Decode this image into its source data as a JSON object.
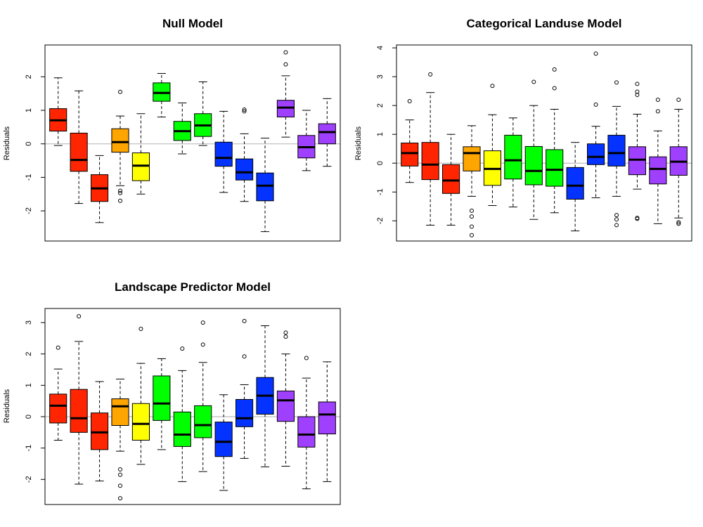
{
  "colors": {
    "red": "#ff2500",
    "orange": "#ffa500",
    "yellow": "#ffff00",
    "green": "#00ff00",
    "blue": "#0433ff",
    "purple": "#a040ff",
    "zero_line": "#bbbbbb"
  },
  "group_colors": [
    "red",
    "red",
    "red",
    "orange",
    "yellow",
    "green",
    "green",
    "green",
    "blue",
    "blue",
    "blue",
    "purple",
    "purple",
    "purple"
  ],
  "chart_data": [
    {
      "type": "box",
      "title": "Null Model",
      "xlabel": "",
      "ylabel": "Residuals",
      "ylim": [
        -2.9,
        2.95
      ],
      "yticks": [
        -2,
        -1,
        0,
        1,
        2
      ],
      "reference_line": 0,
      "grid": false,
      "boxes": [
        {
          "color": "red",
          "whisker_low": -0.05,
          "q1": 0.38,
          "median": 0.7,
          "q3": 1.05,
          "whisker_high": 1.97,
          "outliers": []
        },
        {
          "color": "red",
          "whisker_low": -1.78,
          "q1": -0.82,
          "median": -0.48,
          "q3": 0.32,
          "whisker_high": 1.58,
          "outliers": []
        },
        {
          "color": "red",
          "whisker_low": -2.35,
          "q1": -1.72,
          "median": -1.33,
          "q3": -0.92,
          "whisker_high": -0.35,
          "outliers": []
        },
        {
          "color": "orange",
          "whisker_low": -1.25,
          "q1": -0.25,
          "median": 0.05,
          "q3": 0.45,
          "whisker_high": 0.83,
          "outliers": [
            1.55,
            -1.4,
            -1.47,
            -1.7
          ]
        },
        {
          "color": "yellow",
          "whisker_low": -1.5,
          "q1": -1.1,
          "median": -0.65,
          "q3": -0.27,
          "whisker_high": 0.9,
          "outliers": []
        },
        {
          "color": "green",
          "whisker_low": 0.8,
          "q1": 1.27,
          "median": 1.52,
          "q3": 1.82,
          "whisker_high": 2.1,
          "outliers": []
        },
        {
          "color": "green",
          "whisker_low": -0.3,
          "q1": 0.1,
          "median": 0.38,
          "q3": 0.67,
          "whisker_high": 1.22,
          "outliers": []
        },
        {
          "color": "green",
          "whisker_low": -0.05,
          "q1": 0.22,
          "median": 0.55,
          "q3": 0.9,
          "whisker_high": 1.85,
          "outliers": []
        },
        {
          "color": "blue",
          "whisker_low": -1.45,
          "q1": -0.67,
          "median": -0.42,
          "q3": 0.05,
          "whisker_high": 0.97,
          "outliers": []
        },
        {
          "color": "blue",
          "whisker_low": -1.72,
          "q1": -1.08,
          "median": -0.85,
          "q3": -0.45,
          "whisker_high": 0.3,
          "outliers": [
            0.97,
            1.02
          ]
        },
        {
          "color": "blue",
          "whisker_low": -2.62,
          "q1": -1.7,
          "median": -1.25,
          "q3": -0.87,
          "whisker_high": 0.17,
          "outliers": []
        },
        {
          "color": "purple",
          "whisker_low": 0.2,
          "q1": 0.8,
          "median": 1.08,
          "q3": 1.3,
          "whisker_high": 2.03,
          "outliers": [
            2.37,
            2.73
          ]
        },
        {
          "color": "purple",
          "whisker_low": -0.8,
          "q1": -0.42,
          "median": -0.1,
          "q3": 0.25,
          "whisker_high": 1.0,
          "outliers": []
        },
        {
          "color": "purple",
          "whisker_low": -0.67,
          "q1": 0.0,
          "median": 0.35,
          "q3": 0.6,
          "whisker_high": 1.35,
          "outliers": []
        }
      ]
    },
    {
      "type": "box",
      "title": "Categorical Landuse Model",
      "xlabel": "",
      "ylabel": "Residuals",
      "ylim": [
        -2.7,
        4.1
      ],
      "yticks": [
        -2,
        -1,
        0,
        1,
        2,
        3,
        4
      ],
      "reference_line": 0,
      "grid": false,
      "boxes": [
        {
          "color": "red",
          "whisker_low": -0.67,
          "q1": -0.1,
          "median": 0.35,
          "q3": 0.7,
          "whisker_high": 1.5,
          "outliers": [
            2.15
          ]
        },
        {
          "color": "red",
          "whisker_low": -2.15,
          "q1": -0.57,
          "median": -0.05,
          "q3": 0.72,
          "whisker_high": 2.45,
          "outliers": [
            3.08
          ]
        },
        {
          "color": "red",
          "whisker_low": -2.15,
          "q1": -1.05,
          "median": -0.6,
          "q3": -0.05,
          "whisker_high": 1.0,
          "outliers": []
        },
        {
          "color": "orange",
          "whisker_low": -1.15,
          "q1": -0.27,
          "median": 0.35,
          "q3": 0.57,
          "whisker_high": 1.3,
          "outliers": [
            -1.65,
            -1.85,
            -2.2,
            -2.5
          ]
        },
        {
          "color": "yellow",
          "whisker_low": -1.47,
          "q1": -0.77,
          "median": -0.2,
          "q3": 0.43,
          "whisker_high": 1.68,
          "outliers": [
            2.68
          ]
        },
        {
          "color": "green",
          "whisker_low": -1.52,
          "q1": -0.55,
          "median": 0.1,
          "q3": 0.97,
          "whisker_high": 1.57,
          "outliers": []
        },
        {
          "color": "green",
          "whisker_low": -1.95,
          "q1": -0.75,
          "median": -0.27,
          "q3": 0.58,
          "whisker_high": 2.0,
          "outliers": [
            2.82
          ]
        },
        {
          "color": "green",
          "whisker_low": -1.72,
          "q1": -0.8,
          "median": -0.23,
          "q3": 0.47,
          "whisker_high": 1.87,
          "outliers": [
            2.6,
            3.25
          ]
        },
        {
          "color": "blue",
          "whisker_low": -2.35,
          "q1": -1.25,
          "median": -0.78,
          "q3": -0.15,
          "whisker_high": 0.72,
          "outliers": []
        },
        {
          "color": "blue",
          "whisker_low": -1.2,
          "q1": -0.05,
          "median": 0.22,
          "q3": 0.67,
          "whisker_high": 1.28,
          "outliers": [
            2.03,
            3.8
          ]
        },
        {
          "color": "blue",
          "whisker_low": -1.15,
          "q1": -0.1,
          "median": 0.35,
          "q3": 0.97,
          "whisker_high": 1.97,
          "outliers": [
            2.8,
            -1.8,
            -1.95,
            -2.15
          ]
        },
        {
          "color": "purple",
          "whisker_low": -0.9,
          "q1": -0.4,
          "median": 0.12,
          "q3": 0.57,
          "whisker_high": 1.7,
          "outliers": [
            2.37,
            2.48,
            2.75,
            -1.9,
            -1.93
          ]
        },
        {
          "color": "purple",
          "whisker_low": -2.1,
          "q1": -0.72,
          "median": -0.2,
          "q3": 0.22,
          "whisker_high": 1.12,
          "outliers": [
            1.8,
            2.2
          ]
        },
        {
          "color": "purple",
          "whisker_low": -1.9,
          "q1": -0.42,
          "median": 0.05,
          "q3": 0.57,
          "whisker_high": 1.87,
          "outliers": [
            2.2,
            -2.05,
            -2.1
          ]
        }
      ]
    },
    {
      "type": "box",
      "title": "Landscape Predictor Model",
      "xlabel": "",
      "ylabel": "Residuals",
      "ylim": [
        -2.8,
        3.45
      ],
      "yticks": [
        -2,
        -1,
        0,
        1,
        2,
        3
      ],
      "reference_line": 0,
      "grid": false,
      "boxes": [
        {
          "color": "red",
          "whisker_low": -0.75,
          "q1": -0.2,
          "median": 0.35,
          "q3": 0.72,
          "whisker_high": 1.52,
          "outliers": [
            2.2
          ]
        },
        {
          "color": "red",
          "whisker_low": -2.15,
          "q1": -0.5,
          "median": -0.05,
          "q3": 0.87,
          "whisker_high": 2.4,
          "outliers": [
            3.2
          ]
        },
        {
          "color": "red",
          "whisker_low": -2.05,
          "q1": -1.05,
          "median": -0.5,
          "q3": 0.12,
          "whisker_high": 1.12,
          "outliers": []
        },
        {
          "color": "orange",
          "whisker_low": -1.1,
          "q1": -0.28,
          "median": 0.33,
          "q3": 0.57,
          "whisker_high": 1.2,
          "outliers": [
            -1.68,
            -1.85,
            -2.2,
            -2.6
          ]
        },
        {
          "color": "yellow",
          "whisker_low": -1.52,
          "q1": -0.75,
          "median": -0.23,
          "q3": 0.42,
          "whisker_high": 1.7,
          "outliers": [
            2.8
          ]
        },
        {
          "color": "green",
          "whisker_low": -1.05,
          "q1": -0.12,
          "median": 0.42,
          "q3": 1.3,
          "whisker_high": 1.85,
          "outliers": []
        },
        {
          "color": "green",
          "whisker_low": -2.07,
          "q1": -0.95,
          "median": -0.57,
          "q3": 0.15,
          "whisker_high": 1.47,
          "outliers": [
            2.17
          ]
        },
        {
          "color": "green",
          "whisker_low": -1.75,
          "q1": -0.67,
          "median": -0.27,
          "q3": 0.35,
          "whisker_high": 1.73,
          "outliers": [
            2.3,
            3.0
          ]
        },
        {
          "color": "blue",
          "whisker_low": -2.35,
          "q1": -1.27,
          "median": -0.8,
          "q3": -0.17,
          "whisker_high": 0.7,
          "outliers": []
        },
        {
          "color": "blue",
          "whisker_low": -1.33,
          "q1": -0.32,
          "median": -0.05,
          "q3": 0.55,
          "whisker_high": 1.02,
          "outliers": [
            1.92,
            3.05
          ]
        },
        {
          "color": "blue",
          "whisker_low": -1.6,
          "q1": 0.08,
          "median": 0.67,
          "q3": 1.25,
          "whisker_high": 2.9,
          "outliers": []
        },
        {
          "color": "purple",
          "whisker_low": -1.58,
          "q1": -0.15,
          "median": 0.52,
          "q3": 0.82,
          "whisker_high": 2.0,
          "outliers": [
            2.55,
            2.68
          ]
        },
        {
          "color": "purple",
          "whisker_low": -2.3,
          "q1": -0.97,
          "median": -0.57,
          "q3": 0.0,
          "whisker_high": 1.23,
          "outliers": [
            1.87
          ]
        },
        {
          "color": "purple",
          "whisker_low": -2.07,
          "q1": -0.55,
          "median": 0.07,
          "q3": 0.47,
          "whisker_high": 1.75,
          "outliers": []
        }
      ]
    }
  ]
}
